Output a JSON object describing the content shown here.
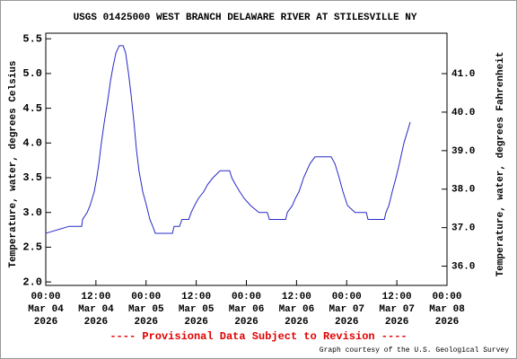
{
  "chart_data": {
    "type": "line",
    "title": "USGS 01425000 WEST BRANCH DELAWARE RIVER AT STILESVILLE NY",
    "ylabel": "Temperature, water, degrees Celsius",
    "y2label": "Temperature, water, degrees Fahrenheit",
    "notice": "---- Provisional Data Subject to Revision ----",
    "credit": "Graph courtesy of the U.S. Geological Survey",
    "xlim": [
      0,
      96
    ],
    "xticks": [
      {
        "value": 0,
        "label": "00:00\nMar 04\n2026"
      },
      {
        "value": 12,
        "label": "12:00\nMar 04\n2026"
      },
      {
        "value": 24,
        "label": "00:00\nMar 05\n2026"
      },
      {
        "value": 36,
        "label": "12:00\nMar 05\n2026"
      },
      {
        "value": 48,
        "label": "00:00\nMar 06\n2026"
      },
      {
        "value": 60,
        "label": "12:00\nMar 06\n2026"
      },
      {
        "value": 72,
        "label": "00:00\nMar 07\n2026"
      },
      {
        "value": 84,
        "label": "12:00\nMar 07\n2026"
      },
      {
        "value": 96,
        "label": "00:00\nMar 08\n2026"
      }
    ],
    "ylim": [
      1.95,
      5.58
    ],
    "yticks": [
      {
        "value": 2.0,
        "label": "2.0"
      },
      {
        "value": 2.5,
        "label": "2.5"
      },
      {
        "value": 3.0,
        "label": "3.0"
      },
      {
        "value": 3.5,
        "label": "3.5"
      },
      {
        "value": 4.0,
        "label": "4.0"
      },
      {
        "value": 4.5,
        "label": "4.5"
      },
      {
        "value": 5.0,
        "label": "5.0"
      },
      {
        "value": 5.5,
        "label": "5.5"
      }
    ],
    "y2lim": [
      35.5,
      42.05
    ],
    "y2ticks": [
      {
        "value": 36.0,
        "label": "36.0"
      },
      {
        "value": 37.0,
        "label": "37.0"
      },
      {
        "value": 38.0,
        "label": "38.0"
      },
      {
        "value": 39.0,
        "label": "39.0"
      },
      {
        "value": 40.0,
        "label": "40.0"
      },
      {
        "value": 41.0,
        "label": "41.0"
      }
    ],
    "series": [
      {
        "color": "#2828c8",
        "x": [
          0,
          5.6,
          8.6,
          8.8,
          9.9,
          10.6,
          11.1,
          11.6,
          12.2,
          12.7,
          13.3,
          14,
          14.8,
          15.5,
          16.1,
          16.8,
          17.6,
          18.5,
          19.1,
          19.8,
          20.4,
          21.1,
          21.7,
          22.3,
          23.2,
          24.1,
          24.9,
          25.6,
          26.2,
          30.3,
          30.7,
          32,
          32.6,
          34.2,
          34.8,
          35.6,
          36.5,
          37.8,
          38.7,
          40,
          41.7,
          44,
          44.5,
          45.4,
          46.4,
          47.5,
          49,
          51,
          53,
          53.5,
          57.4,
          57.8,
          59,
          59.7,
          60.6,
          61.7,
          63.2,
          64.4,
          68.3,
          69.2,
          70.2,
          71.1,
          72.2,
          74,
          76.7,
          77.1,
          81,
          81.4,
          82.1,
          82.9,
          83.8,
          84.6,
          85.7,
          87.2
        ],
        "values": [
          2.7,
          2.8,
          2.8,
          2.9,
          3.0,
          3.1,
          3.2,
          3.3,
          3.5,
          3.7,
          4.0,
          4.3,
          4.6,
          4.9,
          5.1,
          5.3,
          5.4,
          5.4,
          5.3,
          5.0,
          4.7,
          4.3,
          3.9,
          3.6,
          3.3,
          3.1,
          2.9,
          2.8,
          2.7,
          2.7,
          2.8,
          2.8,
          2.9,
          2.9,
          3.0,
          3.1,
          3.2,
          3.3,
          3.4,
          3.5,
          3.6,
          3.6,
          3.5,
          3.4,
          3.3,
          3.2,
          3.1,
          3.0,
          3.0,
          2.9,
          2.9,
          3.0,
          3.1,
          3.2,
          3.3,
          3.5,
          3.7,
          3.8,
          3.8,
          3.7,
          3.5,
          3.3,
          3.1,
          3.0,
          3.0,
          2.9,
          2.9,
          3.0,
          3.1,
          3.3,
          3.5,
          3.7,
          4.0,
          4.3
        ]
      }
    ]
  }
}
